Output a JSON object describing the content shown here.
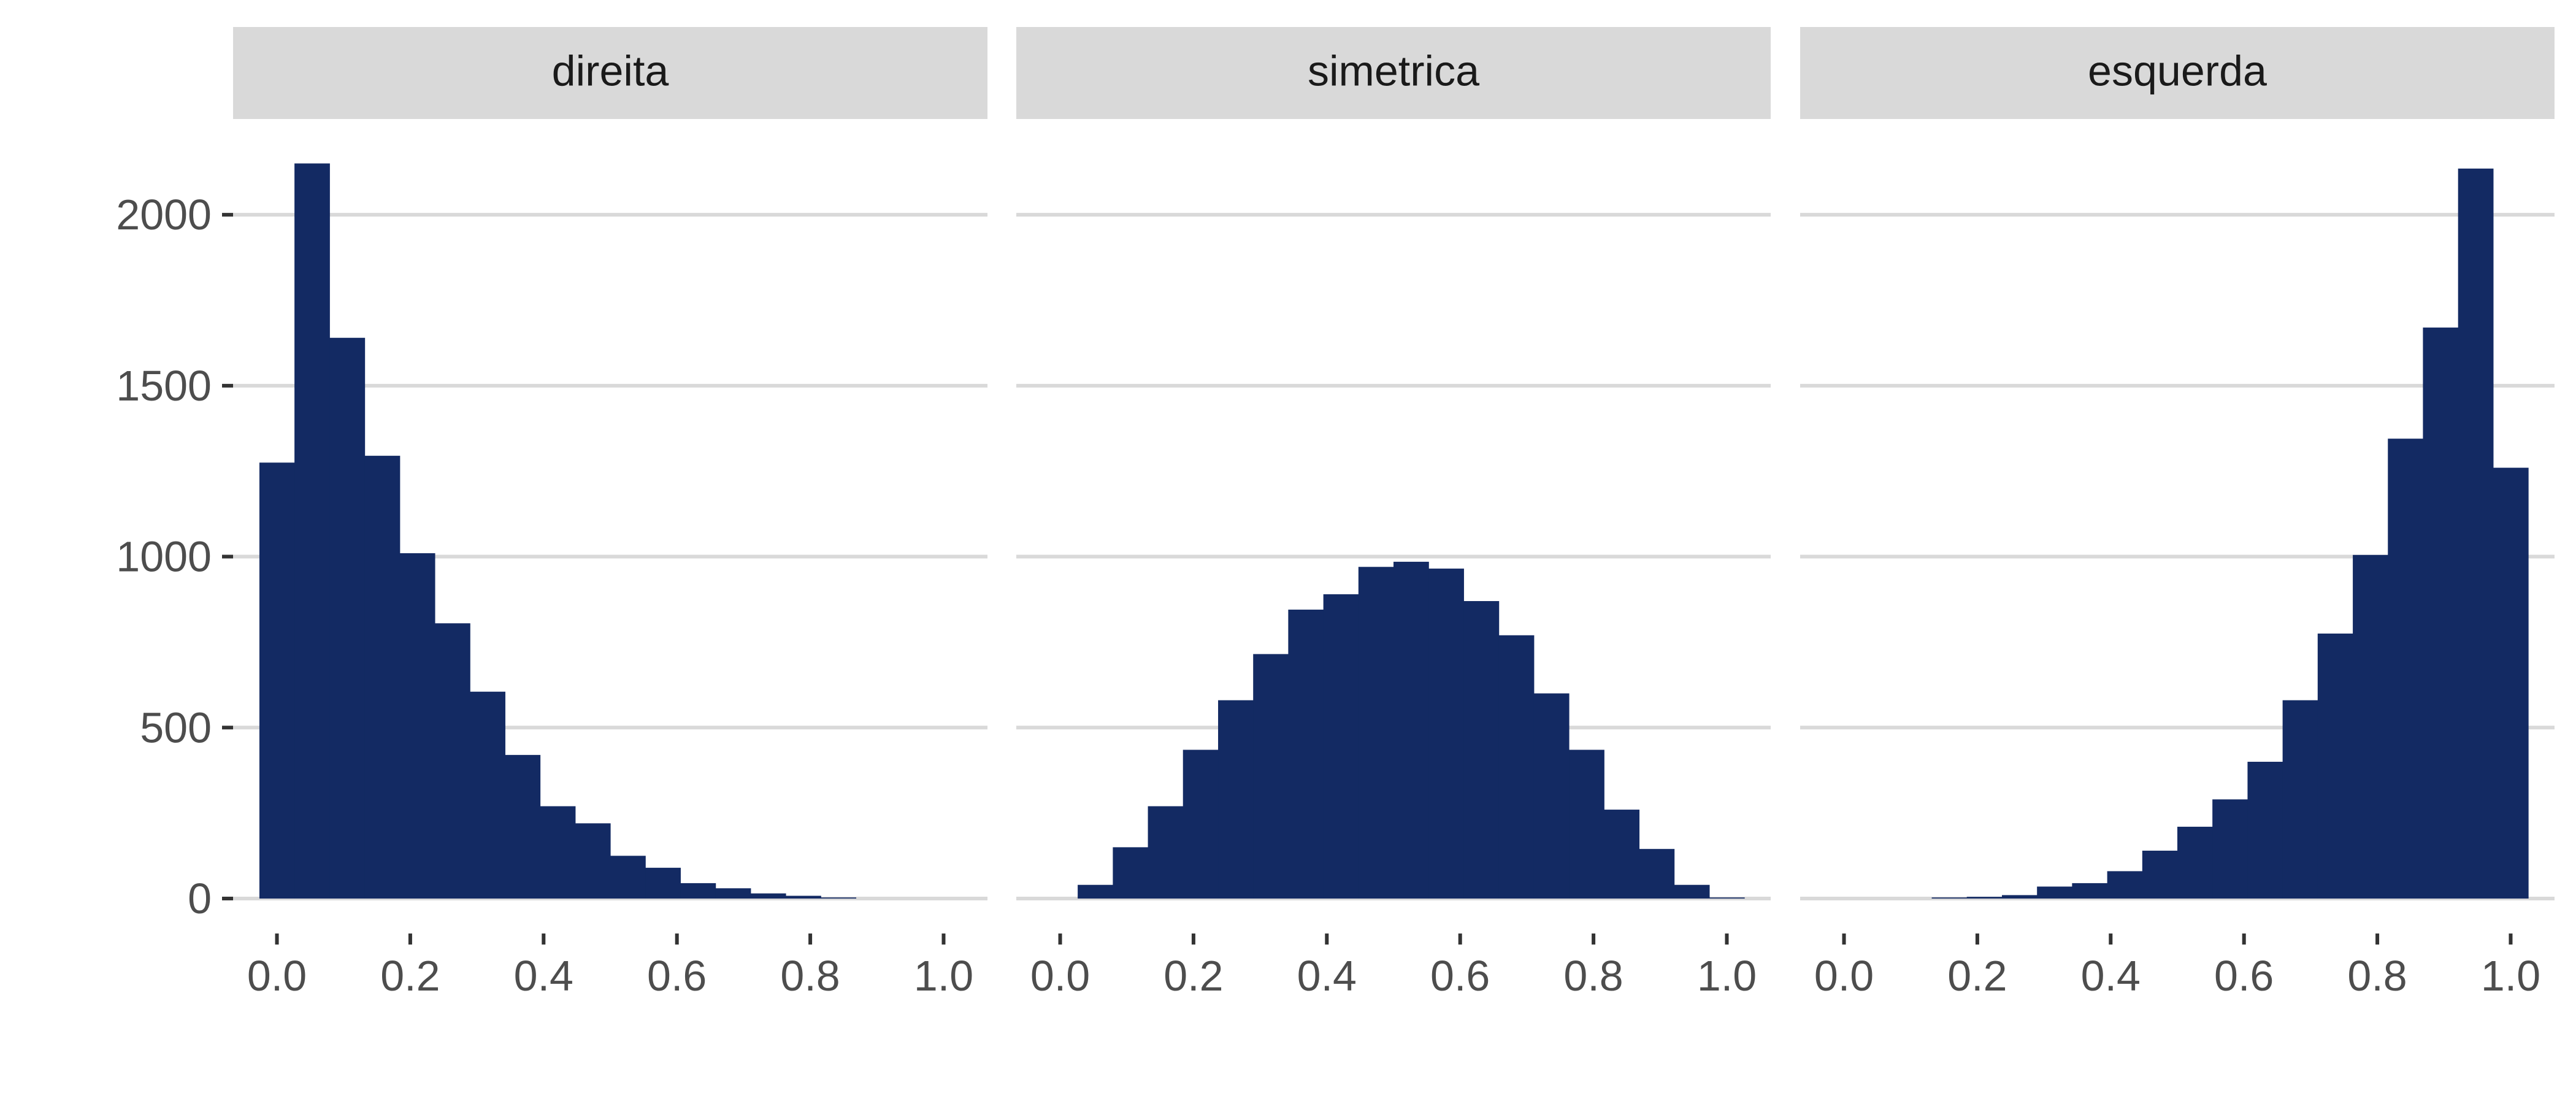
{
  "chart_data": [
    {
      "type": "bar",
      "panel": "direita",
      "bin_width": 0.0526,
      "bin_centers": [
        0.0,
        0.0526,
        0.1053,
        0.1579,
        0.2105,
        0.2632,
        0.3158,
        0.3684,
        0.4211,
        0.4737,
        0.5263,
        0.5789,
        0.6316,
        0.6842,
        0.7368,
        0.7895,
        0.8421,
        0.8947,
        0.9474,
        1.0
      ],
      "values": [
        1275,
        2150,
        1640,
        1295,
        1010,
        805,
        605,
        420,
        270,
        220,
        125,
        90,
        45,
        30,
        15,
        8,
        3,
        0,
        0,
        0
      ],
      "xlim": [
        -0.0658,
        1.0658
      ],
      "ylim": [
        0,
        2280
      ],
      "xticks": [
        "0.0",
        "0.2",
        "0.4",
        "0.6",
        "0.8",
        "1.0"
      ],
      "yticks": [
        "0",
        "500",
        "1000",
        "1500",
        "2000"
      ],
      "color": "#132a63",
      "grid": true,
      "xlabel": "",
      "ylabel": ""
    },
    {
      "type": "bar",
      "panel": "simetrica",
      "bin_width": 0.0526,
      "bin_centers": [
        0.0,
        0.0526,
        0.1053,
        0.1579,
        0.2105,
        0.2632,
        0.3158,
        0.3684,
        0.4211,
        0.4737,
        0.5263,
        0.5789,
        0.6316,
        0.6842,
        0.7368,
        0.7895,
        0.8421,
        0.8947,
        0.9474,
        1.0
      ],
      "values": [
        0,
        40,
        150,
        270,
        435,
        580,
        715,
        845,
        890,
        970,
        985,
        965,
        870,
        770,
        600,
        435,
        260,
        145,
        40,
        3
      ],
      "xlim": [
        -0.0658,
        1.0658
      ],
      "ylim": [
        0,
        2280
      ],
      "xticks": [
        "0.0",
        "0.2",
        "0.4",
        "0.6",
        "0.8",
        "1.0"
      ],
      "color": "#132a63",
      "grid": true
    },
    {
      "type": "bar",
      "panel": "esquerda",
      "bin_width": 0.0526,
      "bin_centers": [
        0.0,
        0.0526,
        0.1053,
        0.1579,
        0.2105,
        0.2632,
        0.3158,
        0.3684,
        0.4211,
        0.4737,
        0.5263,
        0.5789,
        0.6316,
        0.6842,
        0.7368,
        0.7895,
        0.8421,
        0.8947,
        0.9474,
        1.0
      ],
      "values": [
        0,
        0,
        0,
        3,
        5,
        10,
        35,
        45,
        80,
        140,
        210,
        290,
        400,
        580,
        775,
        1005,
        1345,
        1670,
        2135,
        1260
      ],
      "xlim": [
        -0.0658,
        1.0658
      ],
      "ylim": [
        0,
        2280
      ],
      "xticks": [
        "0.0",
        "0.2",
        "0.4",
        "0.6",
        "0.8",
        "1.0"
      ],
      "color": "#132a63",
      "grid": true
    }
  ]
}
